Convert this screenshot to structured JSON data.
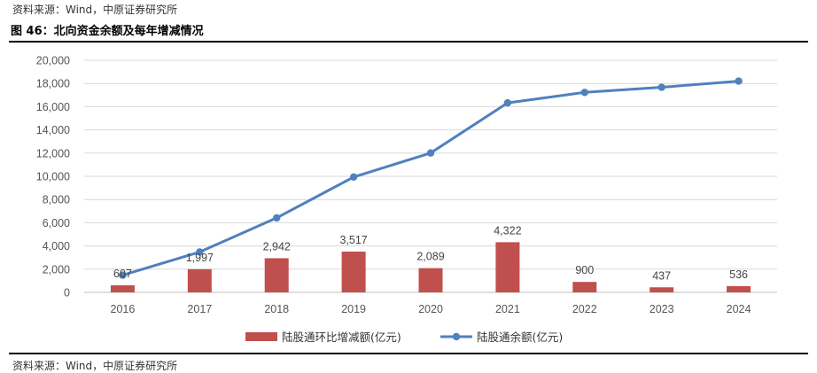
{
  "source_top": "资料来源：Wind，中原证券研究所",
  "figure_title": "图 46：北向资金余额及每年增减情况",
  "source_bottom": "资料来源：Wind，中原证券研究所",
  "colors": {
    "bar": "#C0504D",
    "line": "#4F81BD",
    "grid": "#D9D9D9",
    "axis": "#BFBFBF"
  },
  "chart_data": {
    "type": "bar+line",
    "categories": [
      "2016",
      "2017",
      "2018",
      "2019",
      "2020",
      "2021",
      "2022",
      "2023",
      "2024"
    ],
    "ylim": [
      0,
      20000
    ],
    "yticks": [
      "0",
      "2,000",
      "4,000",
      "6,000",
      "8,000",
      "10,000",
      "12,000",
      "14,000",
      "16,000",
      "18,000",
      "20,000"
    ],
    "ytick_values": [
      0,
      2000,
      4000,
      6000,
      8000,
      10000,
      12000,
      14000,
      16000,
      18000,
      20000
    ],
    "grid": true,
    "legend_position": "bottom",
    "series": [
      {
        "name": "陆股通环比增减额(亿元)",
        "type": "bar",
        "values": [
          607,
          1997,
          2942,
          3517,
          2089,
          4322,
          900,
          437,
          536
        ],
        "labels": [
          "607",
          "1,997",
          "2,942",
          "3,517",
          "2,089",
          "4,322",
          "900",
          "437",
          "536"
        ]
      },
      {
        "name": "陆股通余额(亿元)",
        "type": "line",
        "values": [
          1480,
          3480,
          6420,
          9940,
          12010,
          16330,
          17230,
          17670,
          18200
        ]
      }
    ]
  }
}
